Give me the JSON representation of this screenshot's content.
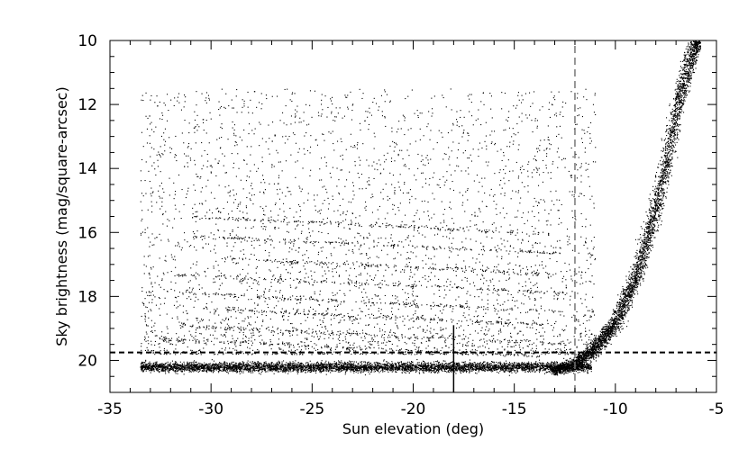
{
  "chart_data": {
    "type": "scatter",
    "title": "",
    "xlabel": "Sun elevation (deg)",
    "ylabel": "Sky brightness (mag/square-arcsec)",
    "xlim": [
      -35,
      -5
    ],
    "ylim": [
      21,
      10
    ],
    "y_inverted": true,
    "x_major_ticks": [
      -35,
      -30,
      -25,
      -20,
      -15,
      -10,
      -5
    ],
    "y_major_ticks": [
      10,
      12,
      14,
      16,
      18,
      20
    ],
    "x_tick_labels": [
      "-35",
      "-30",
      "-25",
      "-20",
      "-15",
      "-10",
      "-5"
    ],
    "y_tick_labels": [
      "10",
      "12",
      "14",
      "16",
      "18",
      "20"
    ],
    "x_minor_step": 1,
    "y_minor_step": 0.5,
    "grid": false,
    "legend": "none",
    "reference_lines": [
      {
        "orientation": "horizontal",
        "y": 19.75,
        "style": "dashed",
        "color": "#000000",
        "from_x": -35,
        "to_x": -5
      },
      {
        "orientation": "vertical",
        "x": -12,
        "style": "dashed",
        "color": "#777777",
        "from_y": 21,
        "to_y": 10
      },
      {
        "orientation": "vertical",
        "x": -18,
        "style": "solid",
        "color": "#000000",
        "from_y": 21,
        "to_y": 18.9
      }
    ],
    "series": [
      {
        "marker_color": "#000000",
        "point_density": "dense",
        "x_range": [
          -33.5,
          -6
        ],
        "y_range": [
          20.7,
          10
        ],
        "description_regions": {
          "night_floor_band": {
            "x": [
              -33.5,
              -12
            ],
            "y": [
              19.8,
              20.6
            ]
          },
          "twilight_rise": {
            "x": [
              -13,
              -6
            ],
            "y": [
              20.4,
              10.0
            ]
          },
          "scattered_cloudy": {
            "x": [
              -33.5,
              -12
            ],
            "y": [
              11.5,
              19.8
            ]
          }
        },
        "twilight_curve_samples": [
          {
            "x": -13.0,
            "y": 20.3
          },
          {
            "x": -12.0,
            "y": 20.1
          },
          {
            "x": -11.0,
            "y": 19.6
          },
          {
            "x": -10.0,
            "y": 18.8
          },
          {
            "x": -9.0,
            "y": 17.4
          },
          {
            "x": -8.0,
            "y": 15.2
          },
          {
            "x": -7.5,
            "y": 13.8
          },
          {
            "x": -7.0,
            "y": 12.2
          },
          {
            "x": -6.5,
            "y": 11.0
          },
          {
            "x": -6.0,
            "y": 10.0
          }
        ]
      }
    ]
  }
}
